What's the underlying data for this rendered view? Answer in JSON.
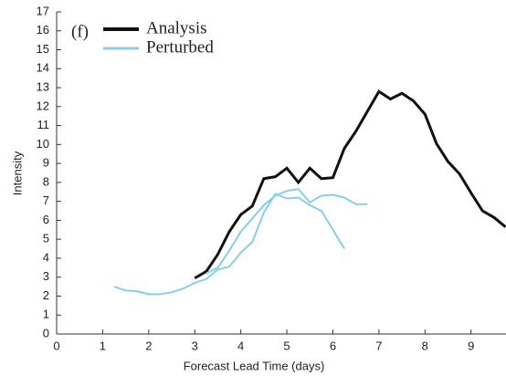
{
  "chart_data": {
    "type": "line",
    "annotation": "(f)",
    "x_label": "Forecast Lead Time (days)",
    "y_label": "Intensity",
    "xlim": [
      0,
      9.76
    ],
    "ylim": [
      0,
      17
    ],
    "xticks": [
      0,
      1,
      2,
      3,
      4,
      5,
      6,
      7,
      8,
      9
    ],
    "yticks": [
      0,
      1,
      2,
      3,
      4,
      5,
      6,
      7,
      8,
      9,
      10,
      11,
      12,
      13,
      14,
      15,
      16,
      17
    ],
    "legend": "upper left",
    "series": [
      {
        "name": "Analysis",
        "color": "#111111",
        "x": [
          3.0,
          3.25,
          3.5,
          3.75,
          4.0,
          4.25,
          4.5,
          4.75,
          5.0,
          5.25,
          5.5,
          5.75,
          6.0,
          6.25,
          6.5,
          6.75,
          7.0,
          7.25,
          7.5,
          7.75,
          8.0,
          8.25,
          8.5,
          8.75,
          9.0,
          9.25,
          9.5,
          9.75
        ],
        "values": [
          2.95,
          3.3,
          4.2,
          5.4,
          6.3,
          6.75,
          8.2,
          8.3,
          8.75,
          8.0,
          8.75,
          8.2,
          8.25,
          9.8,
          10.7,
          11.75,
          12.8,
          12.4,
          12.7,
          12.3,
          11.6,
          10.05,
          9.1,
          8.45,
          7.45,
          6.5,
          6.15,
          5.65
        ]
      },
      {
        "name": "Perturbed",
        "color": "#87ceeb",
        "x": [
          1.25,
          1.5,
          1.75,
          2.0,
          2.25,
          2.5,
          2.75,
          3.0,
          3.25,
          3.5,
          3.75,
          4.0,
          4.25,
          4.5,
          4.75,
          5.0,
          5.25,
          5.5,
          5.75,
          6.0,
          6.25
        ],
        "values": [
          2.5,
          2.3,
          2.25,
          2.1,
          2.1,
          2.2,
          2.4,
          2.7,
          2.9,
          3.4,
          3.55,
          4.3,
          4.85,
          6.4,
          7.4,
          7.15,
          7.2,
          6.8,
          6.5,
          5.5,
          4.5
        ]
      },
      {
        "color": "#87ceeb",
        "x": [
          3.25,
          3.5,
          3.75,
          4.0,
          4.25,
          4.5,
          4.75,
          5.0,
          5.25,
          5.5,
          5.75,
          6.0,
          6.25,
          6.5,
          6.75
        ],
        "values": [
          3.2,
          3.5,
          4.4,
          5.4,
          6.1,
          6.8,
          7.3,
          7.55,
          7.65,
          6.95,
          7.3,
          7.35,
          7.2,
          6.85,
          6.85
        ]
      }
    ]
  }
}
